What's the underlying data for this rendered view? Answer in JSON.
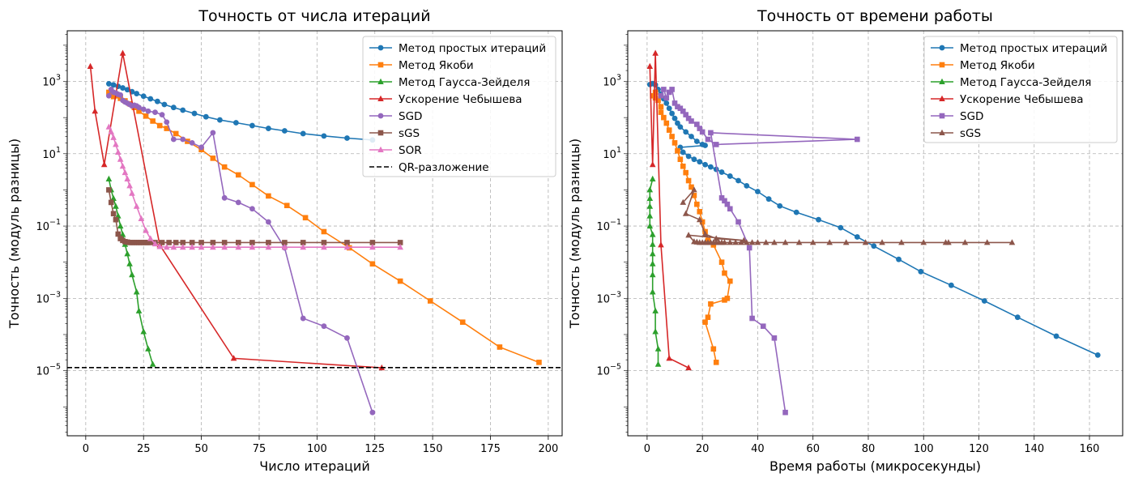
{
  "chart_data": [
    {
      "type": "line",
      "title": "Точность от числа итераций",
      "xlabel": "Число итераций",
      "ylabel": "Точность (модуль разницы)",
      "xlim": [
        -8,
        206
      ],
      "ylim_log10": [
        -6.8,
        4.4
      ],
      "yscale": "log",
      "grid": true,
      "legend_position": "upper right",
      "xticks": [
        0,
        25,
        50,
        75,
        100,
        125,
        150,
        175,
        200
      ],
      "xtick_labels": [
        "0",
        "25",
        "50",
        "75",
        "100",
        "125",
        "150",
        "175",
        "200"
      ],
      "yticks_exp": [
        3,
        1,
        -1,
        -3,
        -5
      ],
      "ytick_labels": [
        [
          "10",
          "3"
        ],
        [
          "10",
          "1"
        ],
        [
          "10",
          "−1"
        ],
        [
          "10",
          "−3"
        ],
        [
          "10",
          "−5"
        ]
      ],
      "hline": {
        "name": "QR-разложение",
        "y": 1.22e-05,
        "color": "#000000"
      },
      "series": [
        {
          "name": "Метод простых итераций",
          "color": "#1f77b4",
          "marker": "circle",
          "x": [
            10,
            12,
            14,
            16,
            18,
            20,
            22,
            25,
            28,
            31,
            34,
            38,
            42,
            47,
            52,
            58,
            65,
            72,
            79,
            86,
            94,
            103,
            113,
            124
          ],
          "y": [
            860,
            800,
            730,
            660,
            590,
            520,
            460,
            390,
            330,
            280,
            230,
            190,
            160,
            130,
            105,
            86,
            72,
            60,
            50,
            43,
            36,
            31,
            27,
            24
          ]
        },
        {
          "name": "Метод Якоби",
          "color": "#ff7f0e",
          "marker": "square",
          "x": [
            10,
            12,
            13,
            14,
            15,
            17,
            19,
            21,
            23,
            26,
            29,
            32,
            35,
            39,
            44,
            50,
            55,
            60,
            66,
            72,
            79,
            87,
            95,
            103,
            114,
            124,
            136,
            149,
            163,
            179,
            196
          ],
          "y": [
            500,
            380,
            450,
            400,
            340,
            290,
            240,
            190,
            150,
            110,
            80,
            60,
            50,
            36,
            22,
            13,
            7.5,
            4.3,
            2.6,
            1.4,
            0.68,
            0.37,
            0.17,
            0.07,
            0.025,
            0.009,
            0.003,
            0.00085,
            0.00022,
            4.5e-05,
            1.7e-05
          ]
        },
        {
          "name": "Метод Гаусса-Зейделя",
          "color": "#2ca02c",
          "marker": "triangle",
          "x": [
            10,
            11,
            12,
            13,
            14,
            15,
            16,
            17,
            18,
            19,
            20,
            22,
            23,
            25,
            27,
            29
          ],
          "y": [
            2.0,
            1.0,
            0.58,
            0.35,
            0.19,
            0.1,
            0.058,
            0.031,
            0.017,
            0.009,
            0.0045,
            0.0015,
            0.00045,
            0.00012,
            4e-05,
            1.5e-05
          ]
        },
        {
          "name": "Ускорение Чебышева",
          "color": "#d62728",
          "marker": "triangle",
          "x": [
            2,
            4,
            8,
            16,
            32,
            64,
            128
          ],
          "y": [
            2600,
            150,
            5,
            6000,
            0.03,
            2.2e-05,
            1.2e-05
          ]
        },
        {
          "name": "SGD",
          "color": "#9467bd",
          "marker": "circle",
          "x": [
            10,
            11,
            12,
            13,
            14,
            15,
            16,
            17,
            18,
            19,
            20,
            21,
            22,
            23,
            25,
            27,
            30,
            33,
            35,
            38,
            42,
            46,
            50,
            55,
            60,
            66,
            72,
            79,
            86,
            94,
            103,
            113,
            124
          ],
          "y": [
            400,
            600,
            500,
            480,
            440,
            420,
            300,
            270,
            250,
            230,
            210,
            220,
            210,
            190,
            170,
            150,
            140,
            120,
            75,
            25,
            25,
            20,
            15,
            38,
            0.6,
            0.45,
            0.3,
            0.13,
            0.025,
            0.00028,
            0.00017,
            8e-05,
            7e-07
          ]
        },
        {
          "name": "sGS",
          "color": "#8c564b",
          "marker": "square",
          "x": [
            10,
            11,
            12,
            13,
            14,
            15,
            16,
            17,
            18,
            19,
            20,
            21,
            22,
            23,
            24,
            25,
            26,
            27,
            28,
            30,
            33,
            36,
            39,
            42,
            46,
            50,
            55,
            60,
            66,
            72,
            79,
            86,
            94,
            103,
            113,
            124,
            136
          ],
          "y": [
            1.0,
            0.45,
            0.22,
            0.15,
            0.06,
            0.045,
            0.04,
            0.037,
            0.036,
            0.035,
            0.035,
            0.035,
            0.035,
            0.035,
            0.035,
            0.035,
            0.035,
            0.035,
            0.035,
            0.035,
            0.035,
            0.035,
            0.035,
            0.035,
            0.035,
            0.035,
            0.035,
            0.035,
            0.035,
            0.035,
            0.035,
            0.035,
            0.035,
            0.035,
            0.035,
            0.035,
            0.035
          ]
        },
        {
          "name": "SOR",
          "color": "#e377c2",
          "marker": "triangle",
          "x": [
            10,
            11,
            12,
            13,
            14,
            15,
            16,
            17,
            18,
            19,
            20,
            22,
            24,
            26,
            28,
            30,
            32,
            35,
            38,
            42,
            46,
            50,
            55,
            60,
            66,
            72,
            79,
            86,
            94,
            103,
            113,
            124,
            136
          ],
          "y": [
            55,
            40,
            28,
            18,
            11,
            7,
            4.5,
            3,
            2,
            1.3,
            0.8,
            0.35,
            0.16,
            0.075,
            0.045,
            0.032,
            0.027,
            0.026,
            0.026,
            0.026,
            0.026,
            0.026,
            0.026,
            0.026,
            0.026,
            0.026,
            0.026,
            0.026,
            0.026,
            0.026,
            0.026,
            0.026,
            0.026
          ]
        }
      ]
    },
    {
      "type": "line",
      "title": "Точность от времени работы",
      "xlabel": "Время работы (микросекунды)",
      "ylabel": "Точность (модуль разницы)",
      "xlim": [
        -7,
        172
      ],
      "ylim_log10": [
        -6.8,
        4.4
      ],
      "yscale": "log",
      "grid": true,
      "legend_position": "upper right",
      "xticks": [
        0,
        20,
        40,
        60,
        80,
        100,
        120,
        140,
        160
      ],
      "xtick_labels": [
        "0",
        "20",
        "40",
        "60",
        "80",
        "100",
        "120",
        "140",
        "160"
      ],
      "yticks_exp": [
        3,
        1,
        -1,
        -3,
        -5
      ],
      "ytick_labels": [
        [
          "10",
          "3"
        ],
        [
          "10",
          "1"
        ],
        [
          "10",
          "−1"
        ],
        [
          "10",
          "−3"
        ],
        [
          "10",
          "−5"
        ]
      ],
      "series": [
        {
          "name": "Метод простых итераций",
          "color": "#1f77b4",
          "marker": "circle",
          "x": [
            1,
            2,
            3,
            4,
            5,
            6,
            7,
            8,
            9,
            10,
            11,
            12,
            14,
            16,
            18,
            20,
            21,
            12,
            13,
            15,
            17,
            19,
            21,
            23,
            25,
            27,
            30,
            33,
            36,
            40,
            44,
            48,
            54,
            62,
            70,
            76,
            82,
            91,
            99,
            110,
            122,
            134,
            148,
            163
          ],
          "y": [
            820,
            870,
            800,
            600,
            450,
            330,
            250,
            180,
            130,
            95,
            70,
            55,
            40,
            30,
            22,
            18,
            17,
            15,
            11,
            8.5,
            7,
            6,
            5,
            4.3,
            3.7,
            3.1,
            2.4,
            1.8,
            1.3,
            0.9,
            0.56,
            0.36,
            0.24,
            0.15,
            0.09,
            0.05,
            0.028,
            0.012,
            0.0055,
            0.0023,
            0.00085,
            0.0003,
            9e-05,
            2.7e-05
          ]
        },
        {
          "name": "Метод Якоби",
          "color": "#ff7f0e",
          "marker": "square",
          "x": [
            2,
            3,
            3,
            4,
            5,
            5,
            6,
            7,
            8,
            9,
            10,
            11,
            12,
            13,
            14,
            15,
            16,
            17,
            18,
            19,
            20,
            21,
            22,
            24,
            27,
            28,
            30,
            29,
            28,
            23,
            22,
            21,
            24,
            25
          ],
          "y": [
            400,
            500,
            350,
            300,
            200,
            140,
            100,
            70,
            45,
            30,
            20,
            12,
            7,
            4.5,
            3,
            1.8,
            1.2,
            0.7,
            0.4,
            0.25,
            0.13,
            0.07,
            0.04,
            0.03,
            0.01,
            0.005,
            0.003,
            0.001,
            0.0009,
            0.0007,
            0.0003,
            0.00022,
            4e-05,
            1.7e-05
          ]
        },
        {
          "name": "Метод Гаусса-Зейделя",
          "color": "#2ca02c",
          "marker": "triangle",
          "x": [
            2,
            1,
            1,
            1,
            1,
            1,
            2,
            2,
            2,
            2,
            2,
            2,
            3,
            3,
            4,
            4
          ],
          "y": [
            2.0,
            1.0,
            0.58,
            0.35,
            0.19,
            0.1,
            0.058,
            0.031,
            0.017,
            0.009,
            0.0045,
            0.0015,
            0.00045,
            0.00012,
            4e-05,
            1.5e-05
          ]
        },
        {
          "name": "Ускорение Чебышева",
          "color": "#d62728",
          "marker": "triangle",
          "x": [
            1,
            2,
            3,
            5,
            8,
            15
          ],
          "y": [
            2600,
            5,
            6000,
            0.03,
            2.2e-05,
            1.2e-05
          ]
        },
        {
          "name": "SGD",
          "color": "#9467bd",
          "marker": "square",
          "x": [
            5,
            6,
            7,
            8,
            9,
            10,
            11,
            12,
            13,
            14,
            15,
            16,
            18,
            19,
            20,
            22,
            25,
            76,
            23,
            27,
            28,
            29,
            30,
            33,
            37,
            38,
            42,
            46,
            50
          ],
          "y": [
            400,
            600,
            350,
            500,
            600,
            250,
            200,
            180,
            150,
            120,
            95,
            80,
            65,
            50,
            40,
            25,
            18,
            25,
            38,
            0.6,
            0.5,
            0.4,
            0.3,
            0.13,
            0.025,
            0.00028,
            0.00017,
            8e-05,
            7e-07
          ]
        },
        {
          "name": "sGS",
          "color": "#8c564b",
          "marker": "triangle",
          "x": [
            13,
            17,
            14,
            19,
            21,
            25,
            35,
            15,
            17,
            18,
            19,
            20,
            21,
            22,
            23,
            24,
            25,
            26,
            27,
            28,
            30,
            32,
            34,
            36,
            38,
            40,
            43,
            46,
            50,
            55,
            60,
            66,
            72,
            79,
            85,
            92,
            100,
            108,
            115,
            123,
            132,
            109
          ],
          "y": [
            0.45,
            1.0,
            0.22,
            0.15,
            0.06,
            0.045,
            0.04,
            0.056,
            0.037,
            0.036,
            0.035,
            0.035,
            0.035,
            0.035,
            0.035,
            0.035,
            0.035,
            0.035,
            0.035,
            0.035,
            0.035,
            0.035,
            0.035,
            0.035,
            0.035,
            0.035,
            0.035,
            0.035,
            0.035,
            0.035,
            0.035,
            0.035,
            0.035,
            0.035,
            0.035,
            0.035,
            0.035,
            0.035,
            0.035,
            0.035,
            0.035,
            0.035
          ]
        }
      ]
    }
  ]
}
